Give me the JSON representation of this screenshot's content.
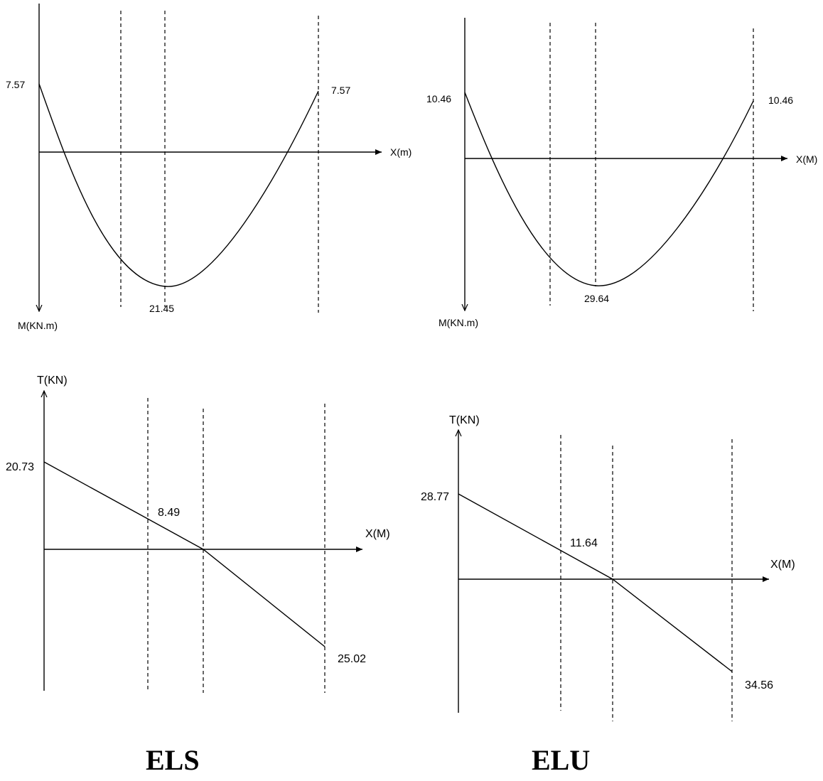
{
  "els": {
    "caption": "ELS",
    "moment": {
      "x_axis_label": "X(m)",
      "y_axis_label": "M(KN.m)",
      "left_value": "7.57",
      "right_value": "7.57",
      "min_value": "21.45"
    },
    "shear": {
      "x_axis_label": "X(M)",
      "y_axis_label": "T(KN)",
      "left_value": "20.73",
      "mid_value": "8.49",
      "right_value": "25.02"
    }
  },
  "elu": {
    "caption": "ELU",
    "moment": {
      "x_axis_label": "X(M)",
      "y_axis_label": "M(KN.m)",
      "left_value": "10.46",
      "right_value": "10.46",
      "min_value": "29.64"
    },
    "shear": {
      "x_axis_label": "X(M)",
      "y_axis_label": "T(KN)",
      "left_value": "28.77",
      "mid_value": "11.64",
      "right_value": "34.56"
    }
  }
}
